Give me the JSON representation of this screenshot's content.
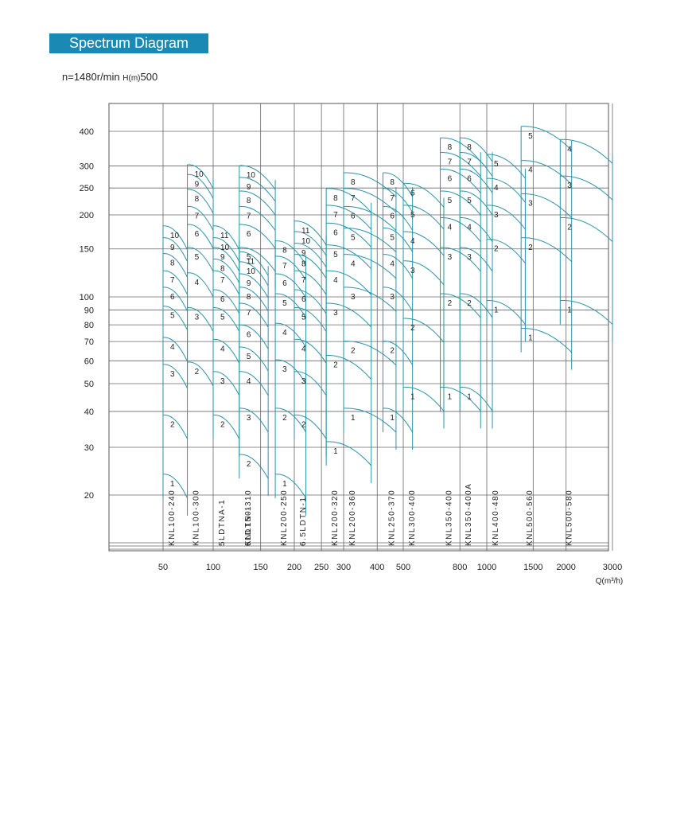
{
  "header": {
    "title": "Spectrum Diagram"
  },
  "subtitle": {
    "speed": "n=1480r/min",
    "h_label": "H(m)",
    "h_max": "500"
  },
  "chart_data": {
    "type": "line",
    "title": "Spectrum Diagram",
    "xlabel": "Q(m³/h)",
    "ylabel": "H(m)",
    "x_scale": "log",
    "y_scale": "log",
    "xlim": [
      35,
      3100
    ],
    "ylim": [
      12,
      500
    ],
    "x_ticks": [
      {
        "value": 50,
        "label": "50"
      },
      {
        "value": 100,
        "label": "100"
      },
      {
        "value": 150,
        "label": "150"
      },
      {
        "value": 200,
        "label": "200"
      },
      {
        "value": 250,
        "label": "250"
      },
      {
        "value": 300,
        "label": "300"
      },
      {
        "value": 400,
        "label": "400"
      },
      {
        "value": 500,
        "label": "500"
      },
      {
        "value": 800,
        "label": "800"
      },
      {
        "value": 1000,
        "label": "1000"
      },
      {
        "value": 1500,
        "label": "1500"
      },
      {
        "value": 2000,
        "label": "2000"
      },
      {
        "value": 3000,
        "label": "3000"
      }
    ],
    "y_ticks": [
      {
        "value": 20,
        "label": "20"
      },
      {
        "value": 30,
        "label": "30"
      },
      {
        "value": 40,
        "label": "40"
      },
      {
        "value": 50,
        "label": "50"
      },
      {
        "value": 60,
        "label": "60"
      },
      {
        "value": 70,
        "label": "70"
      },
      {
        "value": 80,
        "label": "80"
      },
      {
        "value": 90,
        "label": "90"
      },
      {
        "value": 100,
        "label": "100"
      },
      {
        "value": 150,
        "label": "150"
      },
      {
        "value": 200,
        "label": "200"
      },
      {
        "value": 250,
        "label": "250"
      },
      {
        "value": 300,
        "label": "300"
      },
      {
        "value": 400,
        "label": "400"
      }
    ],
    "grid": true,
    "line_color": "#2a93a8",
    "series": [
      {
        "name": "KNL100-240",
        "q_min": 50,
        "q_max": 70,
        "stages": [
          {
            "stage": "1",
            "h": 22
          },
          {
            "stage": "2",
            "h": 36
          },
          {
            "stage": "3",
            "h": 54
          },
          {
            "stage": "4",
            "h": 67
          },
          {
            "stage": "5",
            "h": 86
          },
          {
            "stage": "6",
            "h": 100
          },
          {
            "stage": "7",
            "h": 115
          },
          {
            "stage": "8",
            "h": 133
          },
          {
            "stage": "9",
            "h": 152
          },
          {
            "stage": "10",
            "h": 168
          }
        ]
      },
      {
        "name": "KNL100-300",
        "q_min": 70,
        "q_max": 100,
        "stages": [
          {
            "stage": "2",
            "h": 55
          },
          {
            "stage": "3",
            "h": 85
          },
          {
            "stage": "4",
            "h": 113
          },
          {
            "stage": "5",
            "h": 140
          },
          {
            "stage": "6",
            "h": 170
          },
          {
            "stage": "7",
            "h": 198
          },
          {
            "stage": "8",
            "h": 228
          },
          {
            "stage": "9",
            "h": 258
          },
          {
            "stage": "10",
            "h": 280
          }
        ]
      },
      {
        "name": "5LDTNA-1",
        "q_min": 100,
        "q_max": 125,
        "stages": [
          {
            "stage": "2",
            "h": 36
          },
          {
            "stage": "3",
            "h": 51
          },
          {
            "stage": "4",
            "h": 66
          },
          {
            "stage": "5",
            "h": 85
          },
          {
            "stage": "6",
            "h": 98
          },
          {
            "stage": "7",
            "h": 115
          },
          {
            "stage": "8",
            "h": 127
          },
          {
            "stage": "9",
            "h": 140
          },
          {
            "stage": "10",
            "h": 152
          },
          {
            "stage": "11",
            "h": 168
          }
        ]
      },
      {
        "name": "6LDTN-1",
        "q_min": 125,
        "q_max": 160,
        "stages": [
          {
            "stage": "2",
            "h": 26
          },
          {
            "stage": "3",
            "h": 38
          },
          {
            "stage": "4",
            "h": 51
          },
          {
            "stage": "5",
            "h": 62
          },
          {
            "stage": "6",
            "h": 74
          },
          {
            "stage": "7",
            "h": 88
          },
          {
            "stage": "8",
            "h": 100
          },
          {
            "stage": "9",
            "h": 112
          },
          {
            "stage": "10",
            "h": 124
          },
          {
            "stage": "11",
            "h": 135
          }
        ]
      },
      {
        "name": "KNL150-310",
        "q_min": 125,
        "q_max": 170,
        "stages": [
          {
            "stage": "5",
            "h": 140
          },
          {
            "stage": "6",
            "h": 170
          },
          {
            "stage": "7",
            "h": 198
          },
          {
            "stage": "8",
            "h": 225
          },
          {
            "stage": "9",
            "h": 252
          },
          {
            "stage": "10",
            "h": 278
          }
        ]
      },
      {
        "name": "KNL200-250",
        "q_min": 170,
        "q_max": 220,
        "stages": [
          {
            "stage": "1",
            "h": 22
          },
          {
            "stage": "2",
            "h": 38
          },
          {
            "stage": "3",
            "h": 56
          },
          {
            "stage": "4",
            "h": 75
          },
          {
            "stage": "5",
            "h": 95
          },
          {
            "stage": "6",
            "h": 112
          },
          {
            "stage": "7",
            "h": 130
          },
          {
            "stage": "8",
            "h": 148
          }
        ]
      },
      {
        "name": "6.5LDTN-1",
        "q_min": 200,
        "q_max": 260,
        "stages": [
          {
            "stage": "2",
            "h": 36
          },
          {
            "stage": "3",
            "h": 51
          },
          {
            "stage": "4",
            "h": 66
          },
          {
            "stage": "5",
            "h": 85
          },
          {
            "stage": "6",
            "h": 98
          },
          {
            "stage": "7",
            "h": 115
          },
          {
            "stage": "8",
            "h": 132
          },
          {
            "stage": "9",
            "h": 145
          },
          {
            "stage": "10",
            "h": 160
          },
          {
            "stage": "11",
            "h": 175
          }
        ]
      },
      {
        "name": "KNL200-320",
        "q_min": 260,
        "q_max": 380,
        "stages": [
          {
            "stage": "1",
            "h": 29
          },
          {
            "stage": "2",
            "h": 58
          },
          {
            "stage": "3",
            "h": 88
          },
          {
            "stage": "4",
            "h": 115
          },
          {
            "stage": "5",
            "h": 143
          },
          {
            "stage": "6",
            "h": 172
          },
          {
            "stage": "7",
            "h": 200
          },
          {
            "stage": "8",
            "h": 230
          }
        ]
      },
      {
        "name": "KNL200-360",
        "q_min": 300,
        "q_max": 470,
        "stages": [
          {
            "stage": "1",
            "h": 38
          },
          {
            "stage": "2",
            "h": 65
          },
          {
            "stage": "3",
            "h": 100
          },
          {
            "stage": "4",
            "h": 132
          },
          {
            "stage": "5",
            "h": 165
          },
          {
            "stage": "6",
            "h": 198
          },
          {
            "stage": "7",
            "h": 230
          },
          {
            "stage": "8",
            "h": 262
          }
        ]
      },
      {
        "name": "KNL250-370",
        "q_min": 420,
        "q_max": 540,
        "stages": [
          {
            "stage": "1",
            "h": 38
          },
          {
            "stage": "2",
            "h": 65
          },
          {
            "stage": "3",
            "h": 100
          },
          {
            "stage": "4",
            "h": 132
          },
          {
            "stage": "5",
            "h": 165
          },
          {
            "stage": "6",
            "h": 198
          },
          {
            "stage": "7",
            "h": 230
          },
          {
            "stage": "8",
            "h": 262
          }
        ]
      },
      {
        "name": "KNL300-400",
        "q_min": 500,
        "q_max": 700,
        "stages": [
          {
            "stage": "1",
            "h": 45
          },
          {
            "stage": "2",
            "h": 78
          },
          {
            "stage": "3",
            "h": 125
          },
          {
            "stage": "4",
            "h": 160
          },
          {
            "stage": "5",
            "h": 200
          },
          {
            "stage": "6",
            "h": 240
          }
        ]
      },
      {
        "name": "KNL350-400",
        "q_min": 680,
        "q_max": 950,
        "stages": [
          {
            "stage": "1",
            "h": 45
          },
          {
            "stage": "2",
            "h": 95
          },
          {
            "stage": "3",
            "h": 140
          },
          {
            "stage": "4",
            "h": 180
          },
          {
            "stage": "5",
            "h": 225
          },
          {
            "stage": "6",
            "h": 270
          },
          {
            "stage": "7",
            "h": 310
          },
          {
            "stage": "8",
            "h": 350
          }
        ]
      },
      {
        "name": "KNL350-400A",
        "q_min": 800,
        "q_max": 1050,
        "stages": [
          {
            "stage": "1",
            "h": 45
          },
          {
            "stage": "2",
            "h": 95
          },
          {
            "stage": "3",
            "h": 140
          },
          {
            "stage": "4",
            "h": 180
          },
          {
            "stage": "5",
            "h": 225
          },
          {
            "stage": "6",
            "h": 270
          },
          {
            "stage": "7",
            "h": 310
          },
          {
            "stage": "8",
            "h": 350
          }
        ]
      },
      {
        "name": "KNL400-480",
        "q_min": 1000,
        "q_max": 1400,
        "stages": [
          {
            "stage": "1",
            "h": 90
          },
          {
            "stage": "2",
            "h": 150
          },
          {
            "stage": "3",
            "h": 200
          },
          {
            "stage": "4",
            "h": 250
          },
          {
            "stage": "5",
            "h": 305
          }
        ]
      },
      {
        "name": "KNL500-560",
        "q_min": 1350,
        "q_max": 2100,
        "stages": [
          {
            "stage": "1",
            "h": 72
          },
          {
            "stage": "2",
            "h": 152
          },
          {
            "stage": "3",
            "h": 220
          },
          {
            "stage": "4",
            "h": 290
          },
          {
            "stage": "5",
            "h": 385
          }
        ]
      },
      {
        "name": "KNL500-580",
        "q_min": 1900,
        "q_max": 3000,
        "stages": [
          {
            "stage": "1",
            "h": 90
          },
          {
            "stage": "2",
            "h": 180
          },
          {
            "stage": "3",
            "h": 255
          },
          {
            "stage": "4",
            "h": 345
          }
        ]
      }
    ]
  }
}
